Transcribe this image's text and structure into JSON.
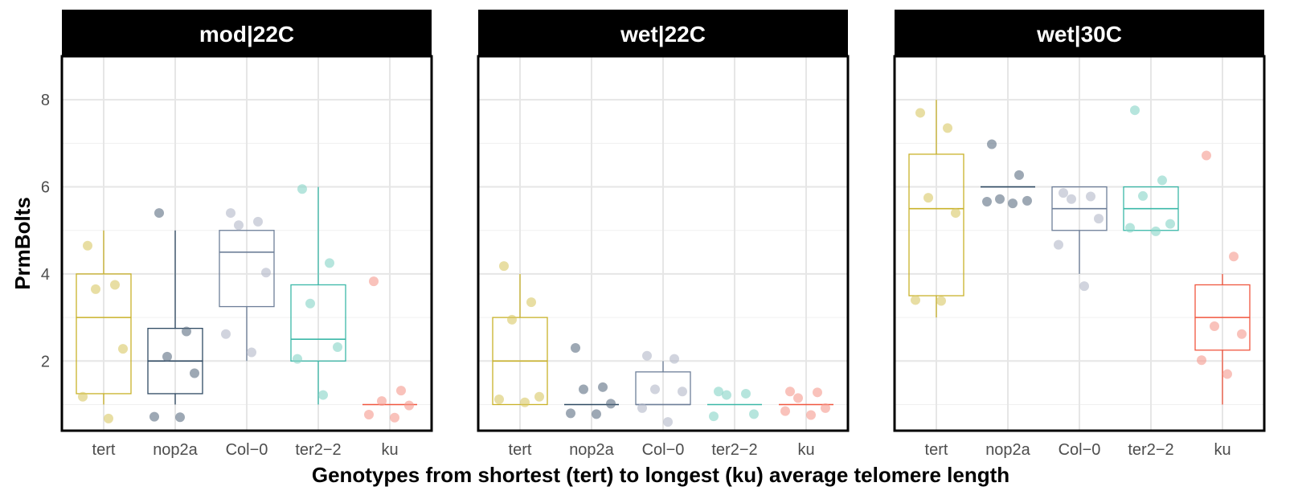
{
  "chart_data": {
    "type": "box",
    "xlabel": "Genotypes from shortest (tert) to longest (ku) average telomere length",
    "ylabel": "PrmBolts",
    "ylim": [
      0.4,
      9.0
    ],
    "yticks": [
      2,
      4,
      6,
      8
    ],
    "categories": [
      "tert",
      "nop2a",
      "Col−0",
      "ter2−2",
      "ku"
    ],
    "colors": {
      "tert": "#c9b22a",
      "nop2a": "#2f4a63",
      "Col−0": "#6e7f99",
      "ter2−2": "#3bb8a8",
      "ku": "#f0563f"
    },
    "point_colors": {
      "tert": "#d9c865",
      "nop2a": "#5c6e82",
      "Col−0": "#b3b8c8",
      "ter2−2": "#86d3c6",
      "ku": "#f59a8e"
    },
    "grid": true,
    "panels": [
      {
        "label": "mod|22C",
        "boxes": [
          {
            "category": "tert",
            "whisker_low": 1.0,
            "q1": 1.25,
            "median": 3.0,
            "q3": 4.0,
            "whisker_high": 5.0,
            "points": [
              4.65,
              3.75,
              3.65,
              2.28,
              1.18,
              0.68
            ]
          },
          {
            "category": "nop2a",
            "whisker_low": 1.0,
            "q1": 1.25,
            "median": 2.0,
            "q3": 2.75,
            "whisker_high": 5.0,
            "points": [
              5.4,
              2.68,
              2.1,
              1.72,
              0.72,
              0.71
            ]
          },
          {
            "category": "Col−0",
            "whisker_low": 2.0,
            "q1": 3.25,
            "median": 4.5,
            "q3": 5.0,
            "whisker_high": 5.0,
            "points": [
              5.4,
              5.2,
              5.12,
              4.03,
              2.62,
              2.2
            ]
          },
          {
            "category": "ter2−2",
            "whisker_low": 1.0,
            "q1": 2.0,
            "median": 2.5,
            "q3": 3.75,
            "whisker_high": 6.0,
            "points": [
              5.95,
              4.25,
              3.32,
              2.32,
              2.05,
              1.22
            ]
          },
          {
            "category": "ku",
            "whisker_low": 1.0,
            "q1": 1.0,
            "median": 1.0,
            "q3": 1.0,
            "whisker_high": 1.0,
            "points": [
              3.83,
              1.32,
              1.08,
              0.98,
              0.77,
              0.7
            ]
          }
        ]
      },
      {
        "label": "wet|22C",
        "boxes": [
          {
            "category": "tert",
            "whisker_low": 1.0,
            "q1": 1.0,
            "median": 2.0,
            "q3": 3.0,
            "whisker_high": 4.0,
            "points": [
              4.18,
              3.35,
              2.95,
              1.18,
              1.12,
              1.05
            ]
          },
          {
            "category": "nop2a",
            "whisker_low": 1.0,
            "q1": 1.0,
            "median": 1.0,
            "q3": 1.0,
            "whisker_high": 1.0,
            "points": [
              2.3,
              1.4,
              1.35,
              1.02,
              0.8,
              0.78
            ]
          },
          {
            "category": "Col−0",
            "whisker_low": 1.0,
            "q1": 1.0,
            "median": 1.0,
            "q3": 1.75,
            "whisker_high": 2.0,
            "points": [
              2.12,
              2.05,
              1.35,
              1.3,
              0.92,
              0.6
            ]
          },
          {
            "category": "ter2−2",
            "whisker_low": 1.0,
            "q1": 1.0,
            "median": 1.0,
            "q3": 1.0,
            "whisker_high": 1.0,
            "points": [
              1.3,
              1.25,
              1.22,
              0.78,
              0.73
            ]
          },
          {
            "category": "ku",
            "whisker_low": 1.0,
            "q1": 1.0,
            "median": 1.0,
            "q3": 1.0,
            "whisker_high": 1.0,
            "points": [
              1.3,
              1.28,
              1.15,
              0.92,
              0.85,
              0.76
            ]
          }
        ]
      },
      {
        "label": "wet|30C",
        "boxes": [
          {
            "category": "tert",
            "whisker_low": 3.0,
            "q1": 3.5,
            "median": 5.5,
            "q3": 6.75,
            "whisker_high": 8.0,
            "points": [
              7.7,
              7.35,
              5.75,
              5.4,
              3.4,
              3.38
            ]
          },
          {
            "category": "nop2a",
            "whisker_low": 6.0,
            "q1": 6.0,
            "median": 6.0,
            "q3": 6.0,
            "whisker_high": 6.0,
            "points": [
              6.98,
              6.27,
              5.72,
              5.68,
              5.66,
              5.62
            ]
          },
          {
            "category": "Col−0",
            "whisker_low": 4.0,
            "q1": 5.0,
            "median": 5.5,
            "q3": 6.0,
            "whisker_high": 6.0,
            "points": [
              5.86,
              5.78,
              5.72,
              5.27,
              4.67,
              3.72
            ]
          },
          {
            "category": "ter2−2",
            "whisker_low": 5.0,
            "q1": 5.0,
            "median": 5.5,
            "q3": 6.0,
            "whisker_high": 6.0,
            "points": [
              7.76,
              6.15,
              5.79,
              5.15,
              5.06,
              4.98
            ]
          },
          {
            "category": "ku",
            "whisker_low": 1.0,
            "q1": 2.25,
            "median": 3.0,
            "q3": 3.75,
            "whisker_high": 4.0,
            "points": [
              6.72,
              4.4,
              2.8,
              2.62,
              2.02,
              1.7
            ]
          }
        ]
      }
    ]
  }
}
